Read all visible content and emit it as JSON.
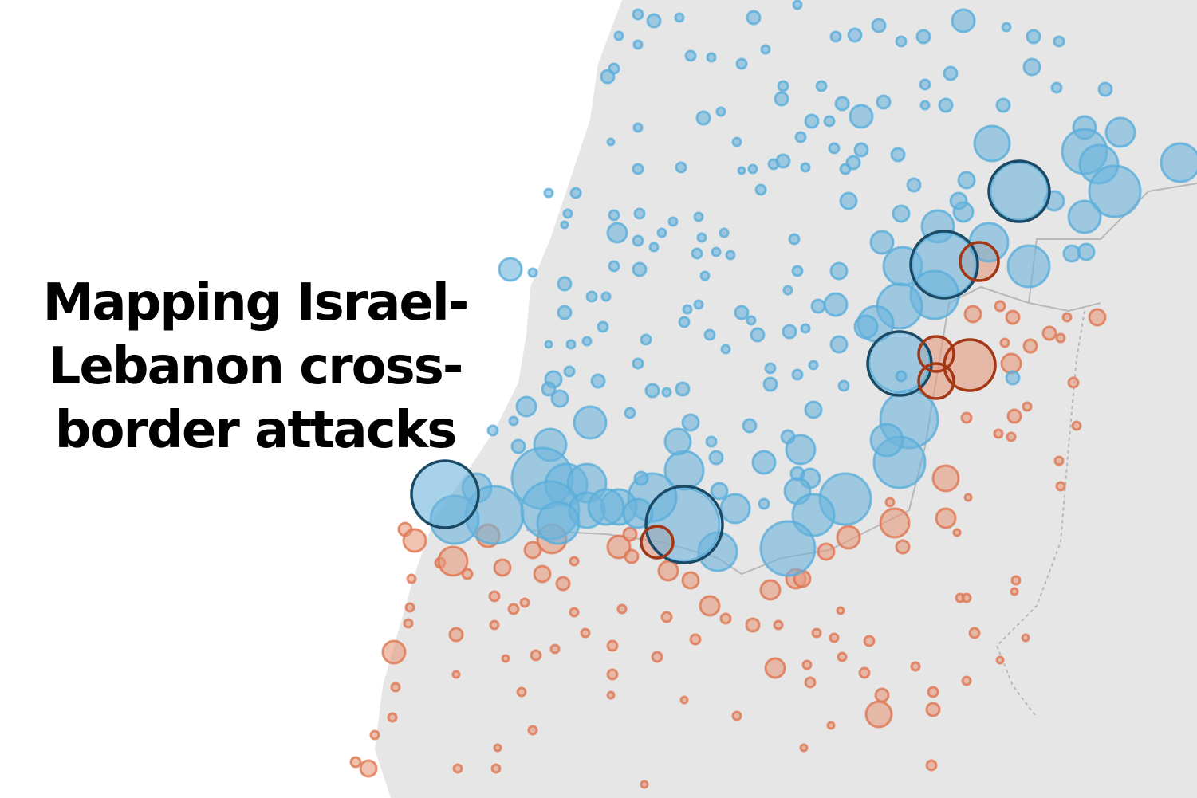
{
  "title": "Mapping Israel-Lebanon cross-border attacks",
  "colors": {
    "sea": "#ffffff",
    "land": "#e6e6e6",
    "border": "#b8b8b8",
    "attacks_from_lebanon_fill": "#6cb4dc",
    "attacks_from_lebanon_stroke": "#5aaedb",
    "attacks_from_lebanon_highlight": "#1b4a66",
    "attacks_from_israel_fill": "#e69a7f",
    "attacks_from_israel_stroke": "#df7650",
    "attacks_from_israel_highlight": "#a33817"
  }
}
